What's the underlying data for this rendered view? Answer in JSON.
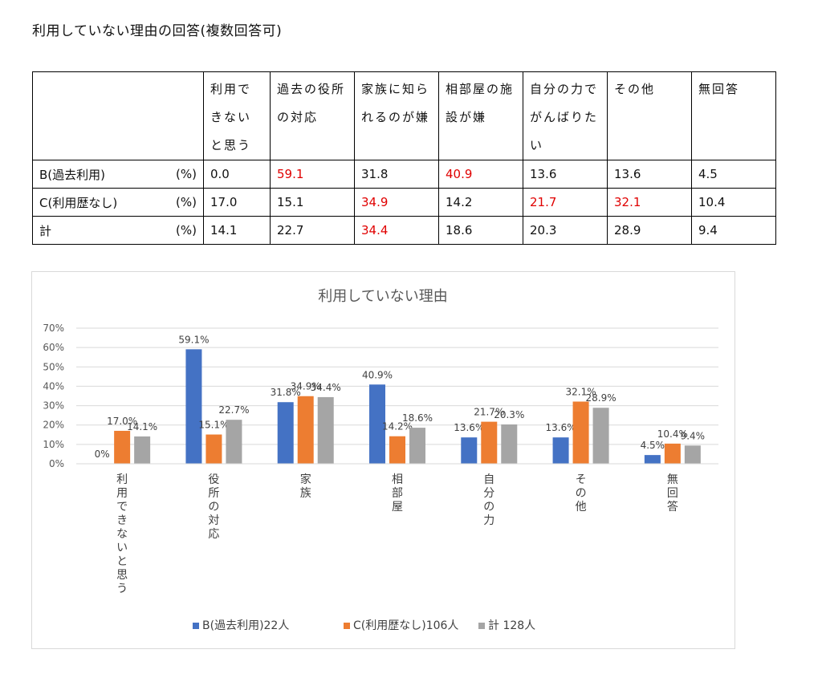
{
  "page_title": "利用していない理由の回答(複数回答可)",
  "table": {
    "headers": [
      "",
      "利用できないと思う",
      "過去の役所の対応",
      "家族に知られるのが嫌",
      "相部屋の施設が嫌",
      "自分の力でがんばりたい",
      "その他",
      "無回答"
    ],
    "rows": [
      {
        "label": "B(過去利用)",
        "unit": "(%)",
        "cells": [
          {
            "v": "0.0",
            "hl": false
          },
          {
            "v": "59.1",
            "hl": true
          },
          {
            "v": "31.8",
            "hl": false
          },
          {
            "v": "40.9",
            "hl": true
          },
          {
            "v": "13.6",
            "hl": false
          },
          {
            "v": "13.6",
            "hl": false
          },
          {
            "v": "4.5",
            "hl": false
          }
        ]
      },
      {
        "label": "C(利用歴なし)",
        "unit": "(%)",
        "cells": [
          {
            "v": "17.0",
            "hl": false
          },
          {
            "v": "15.1",
            "hl": false
          },
          {
            "v": "34.9",
            "hl": true
          },
          {
            "v": "14.2",
            "hl": false
          },
          {
            "v": "21.7",
            "hl": true
          },
          {
            "v": "32.1",
            "hl": true
          },
          {
            "v": "10.4",
            "hl": false
          }
        ]
      },
      {
        "label": "計",
        "unit": "(%)",
        "cells": [
          {
            "v": "14.1",
            "hl": false
          },
          {
            "v": "22.7",
            "hl": false
          },
          {
            "v": "34.4",
            "hl": true
          },
          {
            "v": "18.6",
            "hl": false
          },
          {
            "v": "20.3",
            "hl": false
          },
          {
            "v": "28.9",
            "hl": false
          },
          {
            "v": "9.4",
            "hl": false
          }
        ]
      }
    ]
  },
  "chart_data": {
    "type": "bar",
    "title": "利用していない理由",
    "categories": [
      "利用できないと思う",
      "役所の対応",
      "家族",
      "相部屋",
      "自分の力",
      "その他",
      "無回答"
    ],
    "ylim": [
      0,
      70
    ],
    "yticks": [
      "0%",
      "10%",
      "20%",
      "30%",
      "40%",
      "50%",
      "60%",
      "70%"
    ],
    "grid": true,
    "legend_position": "bottom",
    "series": [
      {
        "name": "B(過去利用)22人",
        "color": "#4472c4",
        "values": [
          0,
          59.1,
          31.8,
          40.9,
          13.6,
          13.6,
          4.5
        ],
        "labels": [
          "0%",
          "59.1%",
          "31.8%",
          "40.9%",
          "13.6%",
          "13.6%",
          "4.5%"
        ]
      },
      {
        "name": "C(利用歴なし)106人",
        "color": "#ed7d31",
        "values": [
          17.0,
          15.1,
          34.9,
          14.2,
          21.7,
          32.1,
          10.4
        ],
        "labels": [
          "17.0%",
          "15.1%",
          "34.9%",
          "14.2%",
          "21.7%",
          "32.1%",
          "10.4%"
        ]
      },
      {
        "name": "計 128人",
        "color": "#a5a5a5",
        "values": [
          14.1,
          22.7,
          34.4,
          18.6,
          20.3,
          28.9,
          9.4
        ],
        "labels": [
          "14.1%",
          "22.7%",
          "34.4%",
          "18.6%",
          "20.3%",
          "28.9%",
          "9.4%"
        ]
      }
    ]
  }
}
